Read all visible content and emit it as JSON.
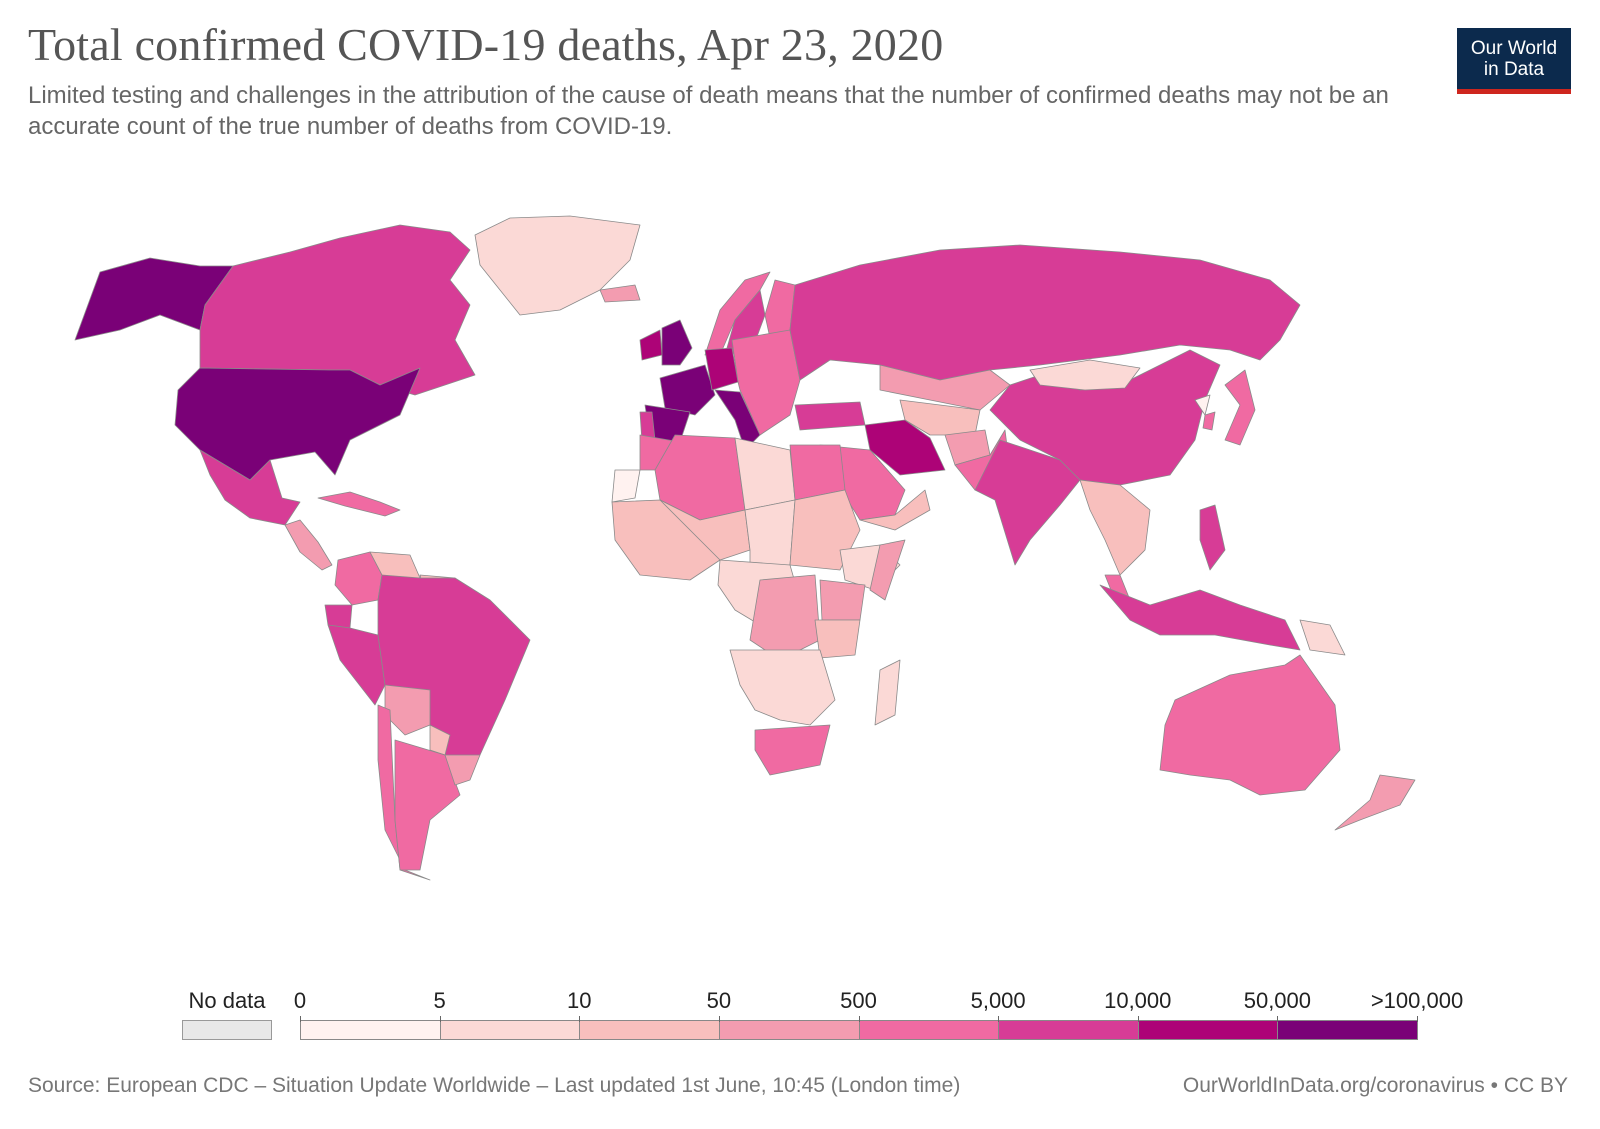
{
  "title": "Total confirmed COVID-19 deaths, Apr 23, 2020",
  "subtitle": "Limited testing and challenges in the attribution of the cause of death means that the number of confirmed deaths may not be an accurate count of the true number of deaths from COVID-19.",
  "logo": {
    "line1": "Our World",
    "line2": "in Data"
  },
  "legend": {
    "no_data_label": "No data",
    "no_data_color": "#e8e8e8",
    "tick_labels": [
      "0",
      "5",
      "10",
      "50",
      "500",
      "5,000",
      "10,000",
      "50,000",
      ">100,000"
    ],
    "bin_colors": [
      "#fff2f0",
      "#fbd9d6",
      "#f8bfbd",
      "#f39cb0",
      "#f06aa2",
      "#d73c96",
      "#ad0377",
      "#7a0177"
    ]
  },
  "footer": {
    "source": "Source: European CDC – Situation Update Worldwide – Last updated 1st June, 10:45 (London time)",
    "credit": "OurWorldInData.org/coronavirus • CC BY"
  },
  "map_data": {
    "metric": "Total confirmed COVID-19 deaths",
    "date": "Apr 23, 2020",
    "regions": [
      {
        "name": "United States",
        "bin": 7
      },
      {
        "name": "Alaska",
        "bin": 7
      },
      {
        "name": "Canada",
        "bin": 5
      },
      {
        "name": "Mexico",
        "bin": 5
      },
      {
        "name": "Greenland",
        "bin": 1
      },
      {
        "name": "Central America",
        "bin": 3
      },
      {
        "name": "Caribbean",
        "bin": 4
      },
      {
        "name": "Colombia",
        "bin": 4
      },
      {
        "name": "Venezuela",
        "bin": 2
      },
      {
        "name": "Guianas",
        "bin": 2
      },
      {
        "name": "Ecuador",
        "bin": 5
      },
      {
        "name": "Peru",
        "bin": 5
      },
      {
        "name": "Brazil",
        "bin": 5
      },
      {
        "name": "Bolivia",
        "bin": 3
      },
      {
        "name": "Paraguay",
        "bin": 2
      },
      {
        "name": "Chile",
        "bin": 4
      },
      {
        "name": "Argentina",
        "bin": 4
      },
      {
        "name": "Uruguay",
        "bin": 3
      },
      {
        "name": "Iceland",
        "bin": 3
      },
      {
        "name": "Norway",
        "bin": 4
      },
      {
        "name": "Sweden",
        "bin": 5
      },
      {
        "name": "Finland",
        "bin": 4
      },
      {
        "name": "Ireland",
        "bin": 6
      },
      {
        "name": "United Kingdom",
        "bin": 7
      },
      {
        "name": "France",
        "bin": 7
      },
      {
        "name": "Spain",
        "bin": 7
      },
      {
        "name": "Portugal",
        "bin": 5
      },
      {
        "name": "Germany",
        "bin": 6
      },
      {
        "name": "Italy",
        "bin": 7
      },
      {
        "name": "Eastern Europe",
        "bin": 4
      },
      {
        "name": "Russia",
        "bin": 5
      },
      {
        "name": "Turkey",
        "bin": 5
      },
      {
        "name": "Kazakhstan",
        "bin": 3
      },
      {
        "name": "Central Asia",
        "bin": 2
      },
      {
        "name": "Afghanistan",
        "bin": 3
      },
      {
        "name": "Iran",
        "bin": 6
      },
      {
        "name": "Saudi Arabia",
        "bin": 4
      },
      {
        "name": "Oman and Yemen",
        "bin": 2
      },
      {
        "name": "Pakistan",
        "bin": 4
      },
      {
        "name": "India",
        "bin": 5
      },
      {
        "name": "China",
        "bin": 5
      },
      {
        "name": "Mongolia",
        "bin": 1
      },
      {
        "name": "North Korea",
        "bin": 0
      },
      {
        "name": "South Korea",
        "bin": 4
      },
      {
        "name": "Japan",
        "bin": 4
      },
      {
        "name": "Southeast Asia",
        "bin": 2
      },
      {
        "name": "Philippines",
        "bin": 5
      },
      {
        "name": "Malaysia",
        "bin": 4
      },
      {
        "name": "Indonesia",
        "bin": 5
      },
      {
        "name": "Papua New Guinea",
        "bin": 1
      },
      {
        "name": "Australia",
        "bin": 4
      },
      {
        "name": "New Zealand",
        "bin": 3
      },
      {
        "name": "Morocco",
        "bin": 4
      },
      {
        "name": "Western Sahara",
        "bin": 0
      },
      {
        "name": "Algeria",
        "bin": 4
      },
      {
        "name": "Libya",
        "bin": 1
      },
      {
        "name": "Egypt",
        "bin": 4
      },
      {
        "name": "West Africa",
        "bin": 2
      },
      {
        "name": "Mali and Niger",
        "bin": 2
      },
      {
        "name": "Chad",
        "bin": 1
      },
      {
        "name": "Sudan",
        "bin": 2
      },
      {
        "name": "Ethiopia",
        "bin": 1
      },
      {
        "name": "Somalia",
        "bin": 3
      },
      {
        "name": "Central Africa",
        "bin": 1
      },
      {
        "name": "DR Congo",
        "bin": 3
      },
      {
        "name": "Kenya",
        "bin": 3
      },
      {
        "name": "Tanzania",
        "bin": 2
      },
      {
        "name": "Southern Africa",
        "bin": 1
      },
      {
        "name": "South Africa",
        "bin": 4
      },
      {
        "name": "Madagascar",
        "bin": 1
      }
    ]
  }
}
